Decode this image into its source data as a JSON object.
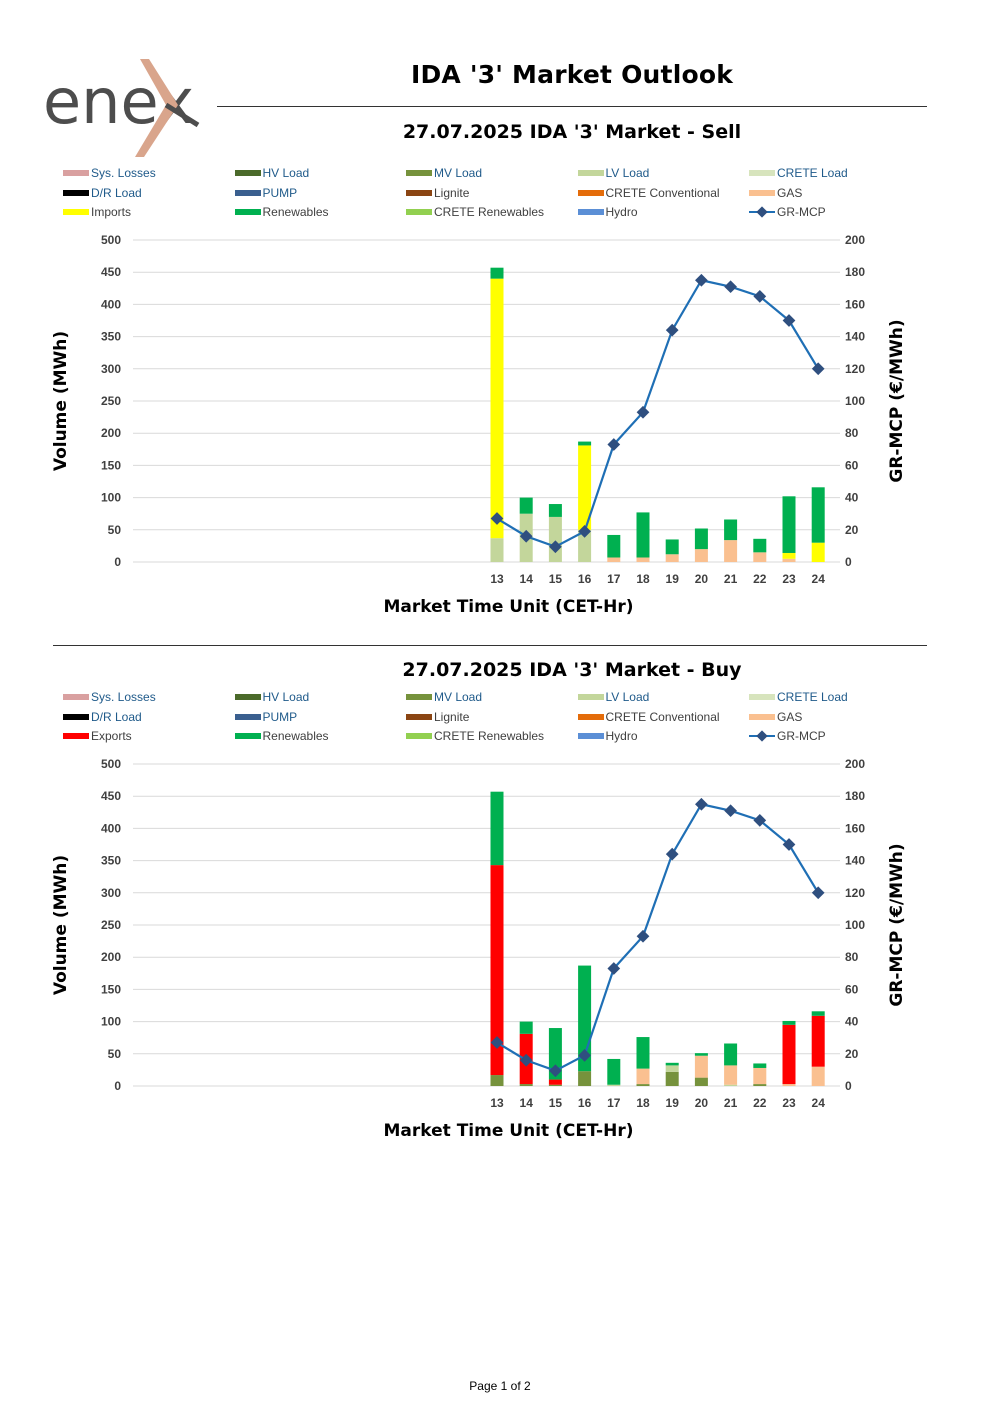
{
  "header": {
    "logo_text": "enex",
    "title": "IDA '3' Market Outlook"
  },
  "colors": {
    "sys_losses": "#d9a0a0",
    "hv_load": "#4b6a2a",
    "mv_load": "#76923c",
    "lv_load": "#c3d69b",
    "crete_load": "#d7e4bd",
    "dr_load": "#000000",
    "pump": "#3a5f8f",
    "lignite": "#8b4513",
    "crete_conventional": "#e46c0a",
    "gas": "#fac090",
    "imports": "#ffff00",
    "exports": "#ff0000",
    "renewables": "#00b050",
    "crete_renewables": "#92d050",
    "hydro": "#5b8fd6",
    "gr_mcp": "#1f6fb5",
    "gr_mcp_marker": "#2f4f7f",
    "logo_arrow": "#d9a58c",
    "legend_text_blue": "#1f5a8a"
  },
  "chart_data": [
    {
      "type": "bar",
      "title": "27.07.2025  IDA '3' Market - Sell",
      "xlabel": "Market Time Unit (CET-Hr)",
      "ylabel": "Volume (MWh)",
      "y2label": "GR-MCP (€/MWh)",
      "ylim": [
        0,
        500
      ],
      "y2lim": [
        0,
        200
      ],
      "yticks": [
        "500",
        "450",
        "400",
        "350",
        "300",
        "250",
        "200",
        "150",
        "100",
        "50",
        "0"
      ],
      "y2ticks": [
        "200",
        "180",
        "160",
        "140",
        "120",
        "100",
        "80",
        "60",
        "40",
        "20",
        "0"
      ],
      "categories": [
        "13",
        "14",
        "15",
        "16",
        "17",
        "18",
        "19",
        "20",
        "21",
        "22",
        "23",
        "24"
      ],
      "legend": [
        {
          "name": "Sys. Losses",
          "key": "sys_losses",
          "kind": "bar"
        },
        {
          "name": "HV Load",
          "key": "hv_load",
          "kind": "bar"
        },
        {
          "name": "MV Load",
          "key": "mv_load",
          "kind": "bar"
        },
        {
          "name": "LV Load",
          "key": "lv_load",
          "kind": "bar"
        },
        {
          "name": "CRETE Load",
          "key": "crete_load",
          "kind": "bar"
        },
        {
          "name": "D/R Load",
          "key": "dr_load",
          "kind": "bar"
        },
        {
          "name": "PUMP",
          "key": "pump",
          "kind": "bar"
        },
        {
          "name": "Lignite",
          "key": "lignite",
          "kind": "bar"
        },
        {
          "name": "CRETE Conventional",
          "key": "crete_conventional",
          "kind": "bar"
        },
        {
          "name": "GAS",
          "key": "gas",
          "kind": "bar"
        },
        {
          "name": "Imports",
          "key": "imports",
          "kind": "bar"
        },
        {
          "name": "Renewables",
          "key": "renewables",
          "kind": "bar"
        },
        {
          "name": "CRETE Renewables",
          "key": "crete_renewables",
          "kind": "bar"
        },
        {
          "name": "Hydro",
          "key": "hydro",
          "kind": "bar"
        },
        {
          "name": "GR-MCP",
          "key": "gr_mcp",
          "kind": "line"
        }
      ],
      "series": [
        {
          "name": "LV Load",
          "key": "lv_load",
          "values": [
            37,
            75,
            70,
            50,
            0,
            0,
            0,
            0,
            0,
            0,
            0,
            0
          ]
        },
        {
          "name": "GAS",
          "key": "gas",
          "values": [
            0,
            0,
            0,
            0,
            7,
            7,
            12,
            20,
            34,
            15,
            5,
            0
          ]
        },
        {
          "name": "Imports",
          "key": "imports",
          "values": [
            403,
            0,
            0,
            131,
            0,
            0,
            0,
            0,
            0,
            0,
            9,
            30
          ]
        },
        {
          "name": "Renewables",
          "key": "renewables",
          "values": [
            17,
            25,
            20,
            6,
            35,
            70,
            23,
            32,
            32,
            21,
            88,
            86
          ]
        }
      ],
      "line": {
        "name": "GR-MCP",
        "values": [
          27,
          16,
          9.5,
          19,
          73,
          93,
          144,
          175,
          171,
          165,
          150,
          120
        ]
      }
    },
    {
      "type": "bar",
      "title": "27.07.2025  IDA '3' Market - Buy",
      "xlabel": "Market Time Unit (CET-Hr)",
      "ylabel": "Volume (MWh)",
      "y2label": "GR-MCP (€/MWh)",
      "ylim": [
        0,
        500
      ],
      "y2lim": [
        0,
        200
      ],
      "yticks": [
        "500",
        "450",
        "400",
        "350",
        "300",
        "250",
        "200",
        "150",
        "100",
        "50",
        "0"
      ],
      "y2ticks": [
        "200",
        "180",
        "160",
        "140",
        "120",
        "100",
        "80",
        "60",
        "40",
        "20",
        "0"
      ],
      "categories": [
        "13",
        "14",
        "15",
        "16",
        "17",
        "18",
        "19",
        "20",
        "21",
        "22",
        "23",
        "24"
      ],
      "legend": [
        {
          "name": "Sys. Losses",
          "key": "sys_losses",
          "kind": "bar"
        },
        {
          "name": "HV Load",
          "key": "hv_load",
          "kind": "bar"
        },
        {
          "name": "MV Load",
          "key": "mv_load",
          "kind": "bar"
        },
        {
          "name": "LV Load",
          "key": "lv_load",
          "kind": "bar"
        },
        {
          "name": "CRETE Load",
          "key": "crete_load",
          "kind": "bar"
        },
        {
          "name": "D/R Load",
          "key": "dr_load",
          "kind": "bar"
        },
        {
          "name": "PUMP",
          "key": "pump",
          "kind": "bar"
        },
        {
          "name": "Lignite",
          "key": "lignite",
          "kind": "bar"
        },
        {
          "name": "CRETE Conventional",
          "key": "crete_conventional",
          "kind": "bar"
        },
        {
          "name": "GAS",
          "key": "gas",
          "kind": "bar"
        },
        {
          "name": "Exports",
          "key": "exports",
          "kind": "bar"
        },
        {
          "name": "Renewables",
          "key": "renewables",
          "kind": "bar"
        },
        {
          "name": "CRETE Renewables",
          "key": "crete_renewables",
          "kind": "bar"
        },
        {
          "name": "Hydro",
          "key": "hydro",
          "kind": "bar"
        },
        {
          "name": "GR-MCP",
          "key": "gr_mcp",
          "kind": "line"
        }
      ],
      "series": [
        {
          "name": "MV Load",
          "key": "mv_load",
          "values": [
            17,
            3,
            2,
            23,
            0,
            3,
            22,
            13,
            0,
            3,
            0,
            0
          ]
        },
        {
          "name": "LV Load",
          "key": "lv_load",
          "values": [
            0,
            0,
            0,
            0,
            2,
            0,
            10,
            0,
            2,
            0,
            0,
            0
          ]
        },
        {
          "name": "GAS",
          "key": "gas",
          "values": [
            0,
            0,
            0,
            0,
            0,
            24,
            0,
            34,
            30,
            25,
            3,
            30
          ]
        },
        {
          "name": "Exports",
          "key": "exports",
          "values": [
            326,
            78,
            8,
            0,
            0,
            0,
            0,
            0,
            0,
            0,
            92,
            79
          ]
        },
        {
          "name": "Renewables",
          "key": "renewables",
          "values": [
            114,
            19,
            80,
            164,
            40,
            49,
            4,
            4,
            34,
            7,
            6,
            7
          ]
        }
      ],
      "line": {
        "name": "GR-MCP",
        "values": [
          27,
          16,
          9.5,
          19,
          73,
          93,
          144,
          175,
          171,
          165,
          150,
          120
        ]
      }
    }
  ],
  "footer": {
    "page": "Page 1 of 2"
  }
}
